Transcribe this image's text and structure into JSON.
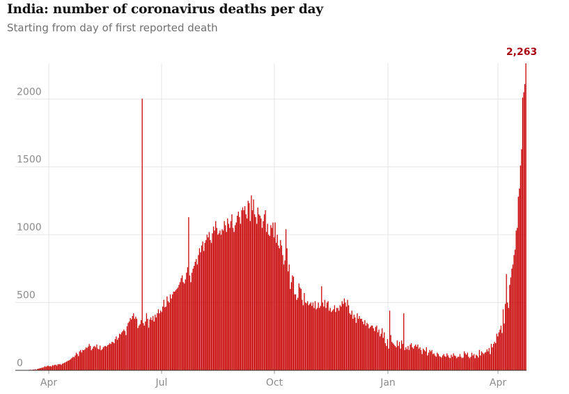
{
  "chart_data": {
    "type": "bar",
    "title": "India: number of coronavirus deaths per day",
    "subtitle": "Starting from day of first reported death",
    "xlabel": "",
    "ylabel": "",
    "ylim": [
      0,
      2263
    ],
    "y_ticks": [
      0,
      500,
      1000,
      1500,
      2000
    ],
    "x_ticks": [
      "Apr",
      "Jul",
      "Oct",
      "Jan",
      "Apr"
    ],
    "peak_label": "2,263",
    "bar_color": "#c70000",
    "peak_label_color": "#ab0613",
    "grid": true,
    "series": [
      {
        "values": [
          1,
          0,
          0,
          1,
          0,
          1,
          0,
          1,
          2,
          0,
          1,
          2,
          3,
          4,
          4,
          3,
          6,
          5,
          8,
          4,
          10,
          12,
          14,
          16,
          19,
          20,
          24,
          30,
          26,
          32,
          35,
          29,
          32,
          28,
          38,
          36,
          40,
          42,
          34,
          45,
          44,
          47,
          40,
          48,
          52,
          55,
          60,
          64,
          70,
          72,
          78,
          84,
          92,
          100,
          96,
          110,
          130,
          120,
          105,
          140,
          150,
          132,
          150,
          148,
          155,
          170,
          165,
          175,
          194,
          180,
          148,
          160,
          175,
          180,
          170,
          190,
          160,
          155,
          182,
          148,
          156,
          170,
          177,
          180,
          175,
          185,
          190,
          200,
          194,
          210,
          208,
          200,
          230,
          250,
          225,
          240,
          270,
          265,
          280,
          290,
          300,
          290,
          260,
          325,
          350,
          360,
          385,
          375,
          400,
          420,
          380,
          395,
          380,
          312,
          330,
          340,
          370,
          2003,
          348,
          330,
          360,
          420,
          380,
          315,
          375,
          390,
          370,
          400,
          360,
          410,
          390,
          420,
          450,
          420,
          440,
          430,
          470,
          520,
          465,
          470,
          545,
          510,
          500,
          560,
          530,
          560,
          580,
          580,
          590,
          600,
          610,
          630,
          650,
          680,
          700,
          650,
          640,
          670,
          720,
          760,
          1129,
          700,
          650,
          720,
          750,
          770,
          800,
          820,
          780,
          850,
          900,
          870,
          920,
          950,
          880,
          940,
          960,
          1000,
          980,
          1020,
          960,
          940,
          1010,
          1060,
          1030,
          1100,
          1050,
          1000,
          1010,
          1030,
          1000,
          1040,
          1030,
          1100,
          1070,
          1020,
          1120,
          1080,
          1050,
          1100,
          1150,
          1050,
          1020,
          1070,
          1090,
          1140,
          1170,
          1130,
          1080,
          1180,
          1200,
          1180,
          1210,
          1150,
          1120,
          1250,
          1233,
          1100,
          1290,
          1180,
          1260,
          1150,
          1130,
          1080,
          1200,
          1150,
          1140,
          1120,
          1050,
          1100,
          1150,
          1180,
          1020,
          1080,
          1000,
          990,
          1070,
          1050,
          1090,
          980,
          1090,
          940,
          1000,
          920,
          900,
          960,
          920,
          850,
          780,
          810,
          1040,
          900,
          730,
          780,
          600,
          650,
          700,
          690,
          560,
          560,
          520,
          535,
          640,
          610,
          600,
          520,
          480,
          570,
          500,
          495,
          510,
          480,
          490,
          500,
          475,
          500,
          460,
          510,
          450,
          460,
          500,
          460,
          475,
          620,
          500,
          470,
          520,
          460,
          500,
          510,
          440,
          460,
          430,
          440,
          450,
          480,
          430,
          460,
          460,
          440,
          480,
          470,
          510,
          490,
          530,
          500,
          470,
          520,
          480,
          420,
          410,
          440,
          380,
          410,
          390,
          350,
          420,
          380,
          400,
          380,
          380,
          360,
          340,
          370,
          330,
          350,
          340,
          310,
          320,
          330,
          330,
          310,
          290,
          320,
          330,
          280,
          300,
          250,
          270,
          310,
          240,
          280,
          200,
          180,
          230,
          160,
          440,
          260,
          210,
          200,
          190,
          180,
          170,
          220,
          180,
          210,
          160,
          220,
          195,
          420,
          150,
          170,
          155,
          180,
          150,
          190,
          200,
          170,
          160,
          180,
          190,
          175,
          190,
          160,
          170,
          150,
          120,
          160,
          150,
          140,
          170,
          110,
          130,
          150,
          140,
          150,
          120,
          125,
          110,
          100,
          130,
          120,
          105,
          100,
          95,
          110,
          120,
          105,
          100,
          125,
          110,
          95,
          90,
          115,
          100,
          125,
          110,
          105,
          90,
          100,
          100,
          120,
          100,
          90,
          95,
          140,
          125,
          115,
          130,
          100,
          90,
          100,
          130,
          110,
          120,
          90,
          115,
          108,
          95,
          150,
          110,
          140,
          130,
          120,
          130,
          135,
          155,
          140,
          165,
          120,
          195,
          170,
          195,
          210,
          200,
          270,
          250,
          280,
          300,
          330,
          275,
          450,
          345,
          490,
          710,
          500,
          460,
          630,
          685,
          750,
          780,
          850,
          890,
          1030,
          1050,
          1280,
          1340,
          1510,
          1630,
          2010,
          2050,
          2110,
          2263
        ]
      }
    ]
  }
}
